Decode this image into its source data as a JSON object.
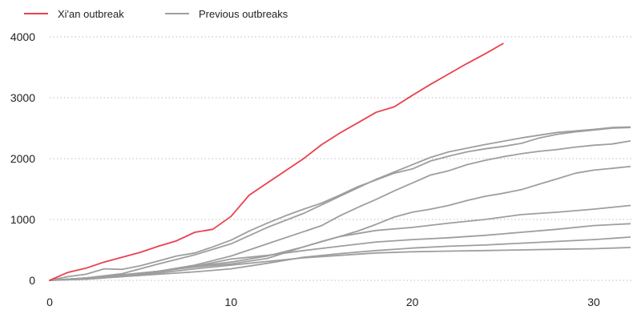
{
  "chart_data": {
    "type": "line",
    "title": "",
    "xlabel": "",
    "ylabel": "",
    "xlim": [
      0,
      32
    ],
    "ylim": [
      0,
      4000
    ],
    "x_ticks": [
      0,
      10,
      20,
      30
    ],
    "y_ticks": [
      0,
      1000,
      2000,
      3000,
      4000
    ],
    "grid": "horizontal-dotted",
    "legend_position": "top-left",
    "legend": [
      {
        "label": "Xi'an outbreak",
        "color": "#e8414e"
      },
      {
        "label": "Previous outbreaks",
        "color": "#9e9e9e"
      }
    ],
    "series": [
      {
        "name": "Xi'an outbreak",
        "color": "#e8414e",
        "x": [
          0,
          1,
          2,
          3,
          4,
          5,
          6,
          7,
          8,
          9,
          10,
          11,
          12,
          13,
          14,
          15,
          16,
          17,
          18,
          19,
          20,
          21,
          22,
          23,
          24,
          25
        ],
        "y": [
          0,
          130,
          200,
          300,
          380,
          460,
          560,
          650,
          790,
          840,
          1050,
          1400,
          1600,
          1800,
          2000,
          2230,
          2420,
          2590,
          2760,
          2850,
          3040,
          3220,
          3390,
          3560,
          3720,
          3890
        ]
      },
      {
        "color": "#9e9e9e",
        "x": [
          0,
          2,
          4,
          6,
          8,
          10,
          12,
          14,
          16,
          18,
          20,
          21,
          22,
          24,
          26,
          28,
          30,
          31,
          32
        ],
        "y": [
          0,
          40,
          110,
          270,
          420,
          600,
          870,
          1100,
          1380,
          1660,
          1900,
          2020,
          2110,
          2230,
          2340,
          2430,
          2480,
          2510,
          2520
        ]
      },
      {
        "color": "#9e9e9e",
        "x": [
          0,
          1,
          2,
          3,
          4,
          5,
          6,
          7,
          8,
          9,
          10,
          11,
          12,
          13,
          14,
          15,
          16,
          17,
          18,
          19,
          20,
          21,
          22,
          23,
          24,
          25,
          26,
          27,
          28,
          29,
          30,
          31,
          32
        ],
        "y": [
          0,
          60,
          100,
          190,
          180,
          240,
          320,
          400,
          450,
          550,
          660,
          810,
          940,
          1060,
          1170,
          1270,
          1400,
          1540,
          1650,
          1760,
          1830,
          1960,
          2040,
          2110,
          2160,
          2200,
          2250,
          2340,
          2400,
          2440,
          2470,
          2500,
          2510
        ]
      },
      {
        "color": "#9e9e9e",
        "x": [
          0,
          2,
          4,
          6,
          8,
          10,
          11,
          12,
          14,
          15,
          16,
          17,
          18,
          19,
          20,
          21,
          22,
          23,
          24,
          25,
          26,
          27,
          28,
          29,
          30,
          31,
          32
        ],
        "y": [
          0,
          30,
          80,
          150,
          250,
          400,
          500,
          600,
          800,
          900,
          1060,
          1200,
          1330,
          1470,
          1600,
          1730,
          1800,
          1900,
          1970,
          2030,
          2080,
          2120,
          2150,
          2190,
          2220,
          2240,
          2290
        ]
      },
      {
        "color": "#9e9e9e",
        "x": [
          0,
          2,
          4,
          6,
          8,
          10,
          12,
          14,
          16,
          17,
          18,
          19,
          20,
          21,
          22,
          23,
          24,
          25,
          26,
          27,
          28,
          29,
          30,
          31,
          32
        ],
        "y": [
          0,
          20,
          60,
          140,
          230,
          300,
          400,
          550,
          720,
          810,
          920,
          1040,
          1120,
          1170,
          1230,
          1310,
          1380,
          1430,
          1490,
          1580,
          1670,
          1760,
          1810,
          1840,
          1870
        ]
      },
      {
        "color": "#9e9e9e",
        "x": [
          0,
          2,
          4,
          6,
          8,
          10,
          12,
          14,
          15,
          16,
          18,
          20,
          22,
          24,
          26,
          28,
          30,
          32
        ],
        "y": [
          0,
          40,
          90,
          150,
          220,
          270,
          360,
          550,
          640,
          720,
          820,
          870,
          940,
          1000,
          1080,
          1120,
          1170,
          1230
        ]
      },
      {
        "color": "#9e9e9e",
        "x": [
          0,
          2,
          4,
          6,
          8,
          10,
          12,
          14,
          16,
          18,
          20,
          22,
          24,
          26,
          28,
          30,
          32
        ],
        "y": [
          0,
          40,
          90,
          150,
          230,
          350,
          410,
          490,
          560,
          630,
          670,
          700,
          740,
          790,
          840,
          900,
          930
        ]
      },
      {
        "color": "#9e9e9e",
        "x": [
          0,
          2,
          4,
          6,
          8,
          10,
          12,
          14,
          16,
          18,
          20,
          22,
          24,
          26,
          28,
          30,
          32
        ],
        "y": [
          0,
          20,
          60,
          100,
          140,
          190,
          280,
          380,
          440,
          490,
          530,
          560,
          580,
          610,
          640,
          670,
          710
        ]
      },
      {
        "color": "#9e9e9e",
        "x": [
          0,
          2,
          4,
          6,
          8,
          10,
          12,
          14,
          16,
          18,
          20,
          22,
          24,
          26,
          28,
          30,
          32
        ],
        "y": [
          0,
          30,
          70,
          120,
          190,
          250,
          310,
          370,
          410,
          450,
          470,
          480,
          490,
          500,
          510,
          520,
          540
        ]
      }
    ]
  }
}
